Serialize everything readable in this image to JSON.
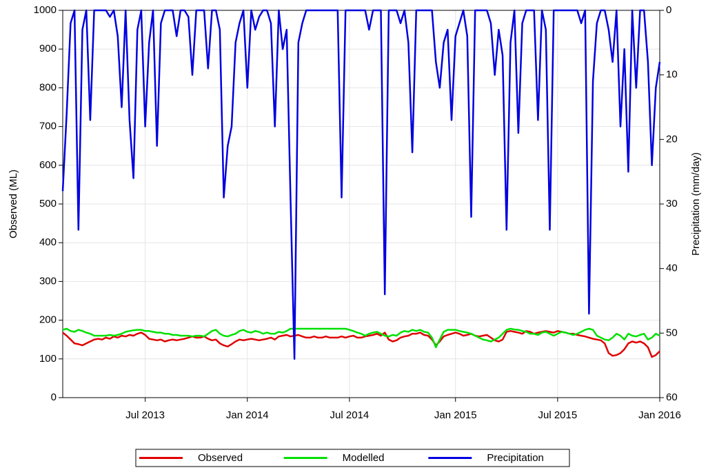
{
  "chart_data": {
    "type": "line",
    "categories": [
      null,
      null,
      null,
      null,
      null,
      null,
      null,
      null,
      null,
      null,
      null,
      null,
      null,
      null,
      null,
      null,
      null,
      null,
      null,
      null,
      null,
      "Jul 2013",
      null,
      null,
      null,
      null,
      null,
      null,
      null,
      null,
      null,
      null,
      null,
      null,
      null,
      null,
      null,
      null,
      null,
      null,
      null,
      null,
      null,
      null,
      null,
      null,
      null,
      "Jan 2014",
      null,
      null,
      null,
      null,
      null,
      null,
      null,
      null,
      null,
      null,
      null,
      null,
      null,
      null,
      null,
      null,
      null,
      null,
      null,
      null,
      null,
      null,
      null,
      null,
      null,
      "Jul 2014",
      null,
      null,
      null,
      null,
      null,
      null,
      null,
      null,
      null,
      null,
      null,
      null,
      null,
      null,
      null,
      null,
      null,
      null,
      null,
      null,
      null,
      null,
      null,
      null,
      null,
      null,
      "Jan 2015",
      null,
      null,
      null,
      null,
      null,
      null,
      null,
      null,
      null,
      null,
      null,
      null,
      null,
      null,
      null,
      null,
      null,
      null,
      null,
      null,
      null,
      null,
      null,
      null,
      null,
      "Jul 2015",
      null,
      null,
      null,
      null,
      null,
      null,
      null,
      null,
      null,
      null,
      null,
      null,
      null,
      null,
      null,
      null,
      null,
      null,
      null,
      null,
      null,
      null,
      null,
      null,
      null,
      "Jan 2016"
    ],
    "series": [
      {
        "name": "Observed",
        "color": "#e00000",
        "values": [
          168,
          160,
          150,
          140,
          138,
          135,
          140,
          145,
          150,
          152,
          150,
          155,
          152,
          158,
          155,
          160,
          158,
          162,
          160,
          165,
          168,
          162,
          152,
          150,
          148,
          150,
          145,
          148,
          150,
          148,
          150,
          152,
          155,
          158,
          155,
          155,
          158,
          152,
          148,
          150,
          140,
          135,
          132,
          138,
          145,
          150,
          148,
          150,
          152,
          150,
          148,
          150,
          152,
          155,
          150,
          158,
          160,
          162,
          158,
          160,
          162,
          158,
          155,
          155,
          158,
          155,
          155,
          158,
          155,
          155,
          155,
          158,
          155,
          158,
          160,
          155,
          155,
          158,
          160,
          162,
          165,
          160,
          168,
          150,
          145,
          148,
          155,
          158,
          160,
          165,
          165,
          168,
          162,
          160,
          150,
          135,
          145,
          158,
          162,
          165,
          168,
          165,
          160,
          162,
          165,
          160,
          158,
          160,
          162,
          155,
          148,
          145,
          150,
          170,
          172,
          170,
          168,
          165,
          172,
          170,
          165,
          168,
          170,
          172,
          170,
          168,
          172,
          170,
          168,
          165,
          165,
          162,
          160,
          158,
          155,
          152,
          150,
          148,
          140,
          115,
          108,
          110,
          115,
          125,
          140,
          145,
          142,
          145,
          140,
          130,
          105,
          110,
          120
        ]
      },
      {
        "name": "Modelled",
        "color": "#00e000",
        "values": [
          175,
          178,
          172,
          170,
          175,
          172,
          168,
          165,
          160,
          160,
          160,
          160,
          162,
          160,
          162,
          165,
          170,
          172,
          174,
          175,
          175,
          172,
          172,
          170,
          168,
          168,
          165,
          165,
          162,
          162,
          160,
          160,
          160,
          158,
          160,
          160,
          158,
          165,
          172,
          175,
          165,
          160,
          158,
          162,
          165,
          172,
          175,
          170,
          168,
          172,
          170,
          165,
          168,
          165,
          165,
          170,
          168,
          172,
          178,
          178,
          178,
          178,
          178,
          178,
          178,
          178,
          178,
          178,
          178,
          178,
          178,
          178,
          178,
          175,
          172,
          168,
          165,
          160,
          165,
          168,
          170,
          165,
          160,
          158,
          162,
          160,
          168,
          172,
          170,
          175,
          172,
          175,
          170,
          168,
          155,
          130,
          150,
          170,
          175,
          175,
          175,
          172,
          170,
          168,
          165,
          160,
          155,
          150,
          148,
          145,
          150,
          155,
          165,
          175,
          178,
          176,
          175,
          172,
          170,
          165,
          165,
          162,
          168,
          170,
          165,
          160,
          165,
          170,
          168,
          165,
          162,
          165,
          170,
          175,
          178,
          175,
          160,
          155,
          150,
          148,
          155,
          165,
          160,
          150,
          165,
          160,
          158,
          162,
          165,
          150,
          155,
          165,
          160
        ]
      },
      {
        "name": "Precipitation",
        "color": "#0000e0",
        "axis": "y2",
        "values": [
          28,
          16,
          2,
          0,
          34,
          3,
          0,
          17,
          0,
          0,
          0,
          0,
          1,
          0,
          4,
          15,
          0,
          17,
          26,
          3,
          0,
          18,
          5,
          0,
          21,
          2,
          0,
          0,
          0,
          4,
          0,
          0,
          1,
          10,
          0,
          0,
          0,
          9,
          0,
          0,
          3,
          29,
          21,
          18,
          5,
          2,
          0,
          12,
          0,
          3,
          1,
          0,
          0,
          2,
          18,
          0,
          6,
          3,
          29,
          54,
          5,
          2,
          0,
          0,
          0,
          0,
          0,
          0,
          0,
          0,
          0,
          29,
          0,
          0,
          0,
          0,
          0,
          0,
          3,
          0,
          0,
          0,
          44,
          0,
          0,
          0,
          2,
          0,
          5,
          22,
          0,
          0,
          0,
          0,
          0,
          8,
          12,
          5,
          3,
          17,
          4,
          2,
          0,
          4,
          32,
          0,
          0,
          0,
          0,
          2,
          10,
          3,
          7,
          34,
          5,
          0,
          19,
          2,
          0,
          0,
          0,
          17,
          0,
          3,
          34,
          0,
          0,
          0,
          0,
          0,
          0,
          0,
          2,
          0,
          47,
          11,
          2,
          0,
          0,
          3,
          8,
          0,
          18,
          6,
          25,
          0,
          12,
          0,
          0,
          8,
          24,
          12,
          8
        ]
      }
    ],
    "y_label": "Observed (ML)",
    "y2_label": "Precipitation (mm/day)",
    "ylim": [
      0,
      1000
    ],
    "yticks": [
      0,
      100,
      200,
      300,
      400,
      500,
      600,
      700,
      800,
      900,
      1000
    ],
    "y2lim": [
      0,
      60
    ],
    "y2ticks": [
      0,
      10,
      20,
      30,
      40,
      50,
      60
    ],
    "y2_inverted": true,
    "grid": true,
    "legend": "bottom"
  }
}
